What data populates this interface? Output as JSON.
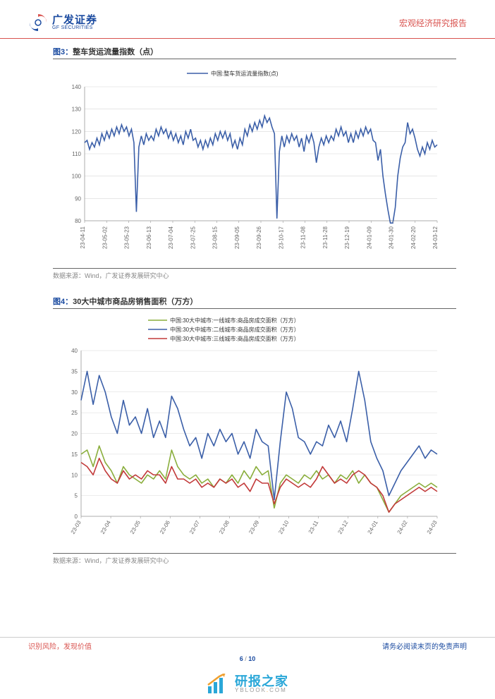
{
  "header": {
    "logo_cn": "广发证券",
    "logo_en": "GF SECURITIES",
    "right": "宏观经济研究报告"
  },
  "chart3": {
    "title_prefix": "图3：",
    "title": "整车货运流量指数（点）",
    "legend": "中国:整车货运流量指数(点)",
    "type": "line",
    "line_color": "#3b5fa8",
    "background_color": "#ffffff",
    "grid_color": "#d8d8d8",
    "axis_color": "#999999",
    "line_width": 1.6,
    "label_fontsize": 8,
    "legend_fontsize": 8,
    "ylim": [
      80,
      140
    ],
    "ytick_step": 10,
    "x_labels": [
      "23-04-11",
      "23-05-02",
      "23-05-23",
      "23-06-13",
      "23-07-04",
      "23-07-25",
      "23-08-15",
      "23-09-05",
      "23-09-26",
      "23-10-17",
      "23-11-08",
      "23-11-28",
      "23-12-19",
      "24-01-09",
      "24-01-30",
      "24-02-20",
      "24-03-12"
    ],
    "values": [
      115,
      116,
      112,
      115,
      113,
      117,
      114,
      119,
      116,
      120,
      117,
      121,
      118,
      122,
      119,
      123,
      120,
      122,
      118,
      121,
      115,
      84,
      113,
      118,
      114,
      119,
      116,
      118,
      116,
      121,
      118,
      122,
      119,
      121,
      117,
      120,
      116,
      119,
      115,
      118,
      114,
      120,
      117,
      121,
      116,
      117,
      113,
      116,
      112,
      116,
      113,
      117,
      114,
      119,
      116,
      120,
      117,
      120,
      116,
      119,
      113,
      116,
      112,
      117,
      114,
      121,
      118,
      123,
      120,
      124,
      121,
      125,
      122,
      127,
      124,
      126,
      122,
      119,
      81,
      111,
      118,
      113,
      118,
      115,
      119,
      116,
      118,
      113,
      117,
      111,
      118,
      115,
      119,
      115,
      106,
      113,
      117,
      114,
      118,
      115,
      118,
      116,
      121,
      118,
      122,
      118,
      120,
      115,
      119,
      115,
      120,
      117,
      121,
      118,
      122,
      119,
      121,
      116,
      115,
      107,
      112,
      100,
      92,
      85,
      79,
      79,
      86,
      100,
      108,
      113,
      115,
      124,
      119,
      121,
      117,
      112,
      109,
      113,
      110,
      115,
      112,
      116,
      113,
      114
    ],
    "source": "数据来源：Wind，广发证券发展研究中心"
  },
  "chart4": {
    "title_prefix": "图4：",
    "title": "30大中城市商品房销售面积（万方）",
    "type": "line",
    "background_color": "#ffffff",
    "grid_color": "#d8d8d8",
    "axis_color": "#999999",
    "line_width": 1.6,
    "label_fontsize": 8,
    "legend_fontsize": 8,
    "ylim": [
      0,
      40
    ],
    "ytick_step": 5,
    "x_labels": [
      "23-03",
      "23-04",
      "23-05",
      "23-06",
      "23-07",
      "23-08",
      "23-09",
      "23-10",
      "23-11",
      "23-12",
      "24-01",
      "24-02",
      "24-03"
    ],
    "series": [
      {
        "name": "中国:30大中城市:一线城市:商品房成交面积（万方）",
        "color": "#8aae3c",
        "values": [
          15,
          16,
          12,
          17,
          13,
          11,
          8,
          12,
          10,
          9,
          8,
          10,
          9,
          11,
          9,
          16,
          12,
          10,
          9,
          10,
          8,
          9,
          7,
          9,
          8,
          10,
          8,
          11,
          9,
          12,
          10,
          11,
          2,
          8,
          10,
          9,
          8,
          10,
          9,
          11,
          9,
          10,
          8,
          10,
          9,
          11,
          8,
          10,
          8,
          7,
          4,
          1,
          3,
          5,
          6,
          7,
          8,
          7,
          8,
          7
        ]
      },
      {
        "name": "中国:30大中城市:二线城市:商品房成交面积（万方）",
        "color": "#3b5fa8",
        "values": [
          28,
          35,
          27,
          34,
          30,
          24,
          20,
          28,
          22,
          24,
          20,
          26,
          19,
          23,
          19,
          29,
          26,
          21,
          17,
          19,
          14,
          20,
          17,
          21,
          18,
          20,
          15,
          18,
          14,
          21,
          18,
          17,
          4,
          18,
          30,
          26,
          19,
          18,
          15,
          18,
          17,
          22,
          19,
          23,
          18,
          26,
          35,
          28,
          18,
          14,
          11,
          5,
          8,
          11,
          13,
          15,
          17,
          14,
          16,
          15
        ]
      },
      {
        "name": "中国:30大中城市:三线城市:商品房成交面积（万方）",
        "color": "#c23a3a",
        "values": [
          13,
          12,
          10,
          14,
          11,
          9,
          8,
          11,
          9,
          10,
          9,
          11,
          10,
          10,
          8,
          12,
          9,
          9,
          8,
          9,
          7,
          8,
          7,
          9,
          8,
          9,
          7,
          8,
          6,
          9,
          8,
          8,
          3,
          7,
          9,
          8,
          7,
          8,
          7,
          9,
          12,
          10,
          8,
          9,
          8,
          10,
          11,
          10,
          8,
          7,
          5,
          1,
          3,
          4,
          5,
          6,
          7,
          6,
          7,
          6
        ]
      }
    ],
    "source": "数据来源：Wind，广发证券发展研究中心"
  },
  "footer": {
    "left": "识别风险，发现价值",
    "right": "请务必阅读末页的免责声明"
  },
  "page": {
    "current": "6",
    "total": "10"
  },
  "watermark": {
    "cn": "研报之家",
    "en_pre": "YBLOOK",
    "en_dot": ".",
    "en_post": "COM"
  }
}
